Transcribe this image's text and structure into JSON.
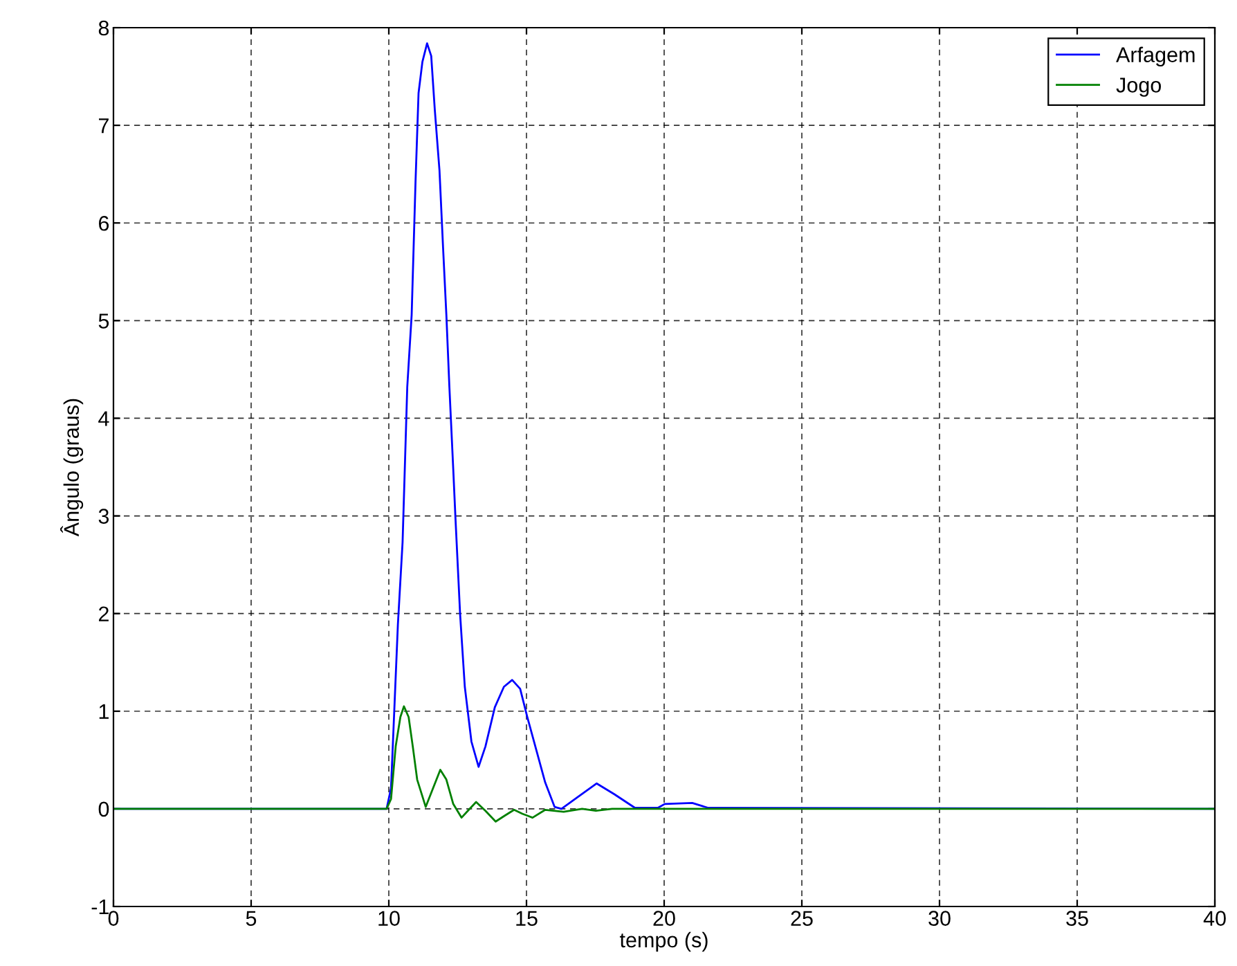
{
  "chart_data": {
    "type": "line",
    "xlabel": "tempo (s)",
    "ylabel": "Ângulo (graus)",
    "xlim": [
      0,
      40
    ],
    "ylim": [
      -1,
      8
    ],
    "xticks": [
      0,
      5,
      10,
      15,
      20,
      25,
      30,
      35,
      40
    ],
    "yticks": [
      -1,
      0,
      1,
      2,
      3,
      4,
      5,
      6,
      7,
      8
    ],
    "grid": true,
    "legend": "top right",
    "series": [
      {
        "name": "Arfagem",
        "color": "#0000ff",
        "x": [
          0,
          9.92,
          10.08,
          10.33,
          10.5,
          10.67,
          10.83,
          10.97,
          11.08,
          11.22,
          11.39,
          11.54,
          11.67,
          11.84,
          11.97,
          12.09,
          12.2,
          12.34,
          12.42,
          12.59,
          12.76,
          13.0,
          13.26,
          13.51,
          13.85,
          14.18,
          14.48,
          14.77,
          15.02,
          15.35,
          15.68,
          16.02,
          16.27,
          16.86,
          17.55,
          18.19,
          18.94,
          19.77,
          20.02,
          21.02,
          21.6,
          40
        ],
        "values": [
          0,
          0,
          0.21,
          1.89,
          2.73,
          4.32,
          5.06,
          6.42,
          7.33,
          7.65,
          7.84,
          7.71,
          7.16,
          6.54,
          5.75,
          5.06,
          4.32,
          3.48,
          2.98,
          1.99,
          1.25,
          0.69,
          0.43,
          0.64,
          1.04,
          1.25,
          1.32,
          1.23,
          0.95,
          0.61,
          0.27,
          0.02,
          0,
          0.12,
          0.26,
          0.15,
          0.01,
          0.01,
          0.05,
          0.06,
          0.01,
          0
        ]
      },
      {
        "name": "Jogo",
        "color": "#008000",
        "x": [
          0,
          9.92,
          10.08,
          10.25,
          10.42,
          10.55,
          10.72,
          10.87,
          11.03,
          11.34,
          11.59,
          11.87,
          12.09,
          12.34,
          12.64,
          12.87,
          13.17,
          13.51,
          13.88,
          14.21,
          14.55,
          14.85,
          15.22,
          15.68,
          16.35,
          17.02,
          17.52,
          18.11,
          40
        ],
        "values": [
          0,
          0,
          0.1,
          0.64,
          0.94,
          1.05,
          0.94,
          0.64,
          0.3,
          0.02,
          0.2,
          0.4,
          0.3,
          0.05,
          -0.09,
          -0.02,
          0.07,
          -0.02,
          -0.13,
          -0.07,
          -0.01,
          -0.05,
          -0.09,
          -0.01,
          -0.03,
          0,
          -0.02,
          0,
          0
        ]
      }
    ]
  }
}
